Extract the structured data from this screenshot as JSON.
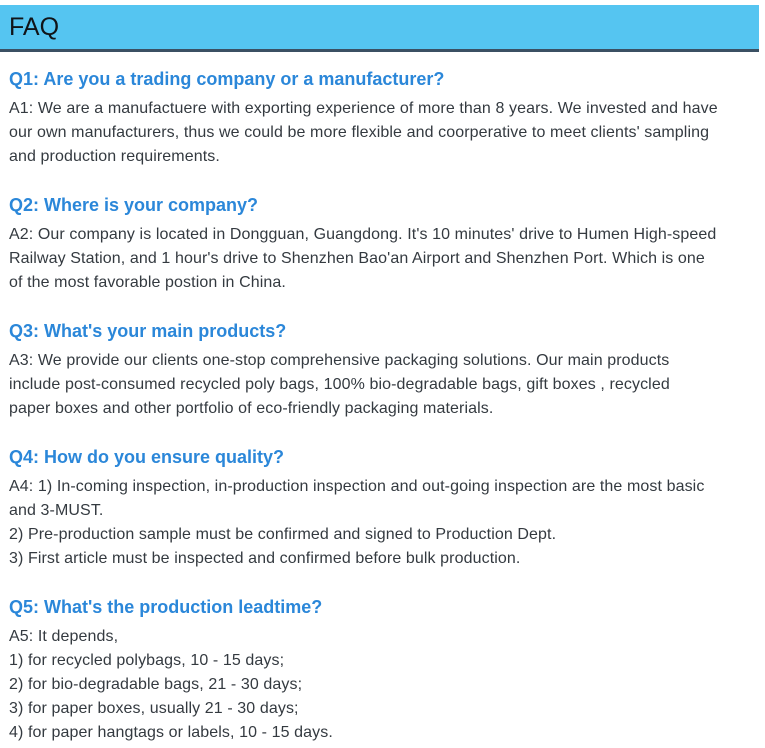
{
  "page": {
    "title": "FAQ"
  },
  "theme": {
    "header_bg": "#55c5f1",
    "header_border": "#3b5063",
    "title_color": "#101418",
    "question_color": "#2b87d9",
    "body_color": "#343a40",
    "page_bg": "#ffffff"
  },
  "faq": {
    "items": [
      {
        "question": "Q1: Are you a trading company or a manufacturer?",
        "answer_lines": [
          "A1: We are a manufactuere with exporting experience of more than 8 years. We invested and have",
          "our own manufacturers, thus we could be more flexible and coorperative to meet clients' sampling",
          "and production requirements."
        ]
      },
      {
        "question": "Q2: Where is your company?",
        "answer_lines": [
          "A2: Our company is located in Dongguan, Guangdong. It's 10 minutes' drive to Humen High-speed",
          "Railway Station, and 1 hour's drive to Shenzhen Bao'an Airport and Shenzhen Port. Which is one",
          "of the most favorable postion in China."
        ]
      },
      {
        "question": "Q3: What's your main products?",
        "answer_lines": [
          "A3: We provide our clients one-stop comprehensive packaging solutions. Our main products",
          "include post-consumed recycled poly bags, 100% bio-degradable bags, gift boxes , recycled",
          "paper boxes and other portfolio of eco-friendly packaging materials."
        ]
      },
      {
        "question": "Q4: How do you ensure quality?",
        "answer_lines": [
          "A4: 1) In-coming inspection, in-production inspection and out-going inspection are the most basic",
          "and 3-MUST.",
          "2) Pre-production sample must be confirmed and signed to Production Dept.",
          "3) First article must be inspected and confirmed before bulk production."
        ]
      },
      {
        "question": "Q5: What's the production leadtime?",
        "answer_lines": [
          "A5: It depends,",
          "1) for recycled polybags, 10 - 15 days;",
          "2) for bio-degradable bags, 21 - 30 days;",
          "3) for paper boxes, usually 21 - 30 days;",
          "4) for paper hangtags or labels, 10 - 15 days."
        ]
      }
    ]
  }
}
